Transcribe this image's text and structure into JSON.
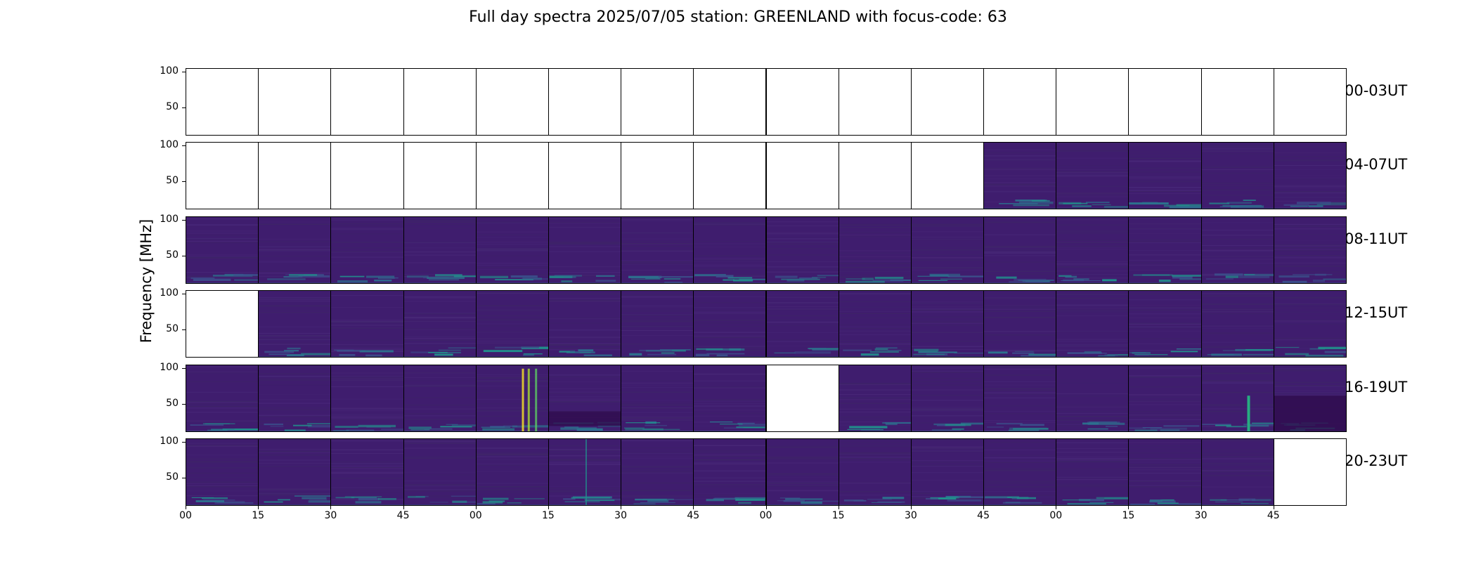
{
  "chart_data": {
    "type": "heatmap",
    "title": "Full day spectra 2025/07/05 station: GREENLAND with focus-code: 63",
    "ylabel": "Frequency [MHz]",
    "xlabel": "",
    "yticks": [
      "100",
      "50"
    ],
    "ylim": [
      10,
      105
    ],
    "xticks": [
      "00",
      "15",
      "30",
      "45",
      "00",
      "15",
      "30",
      "45",
      "00",
      "15",
      "30",
      "45",
      "00",
      "15",
      "30",
      "45"
    ],
    "colormap": "viridis",
    "rows": [
      {
        "label": "00-03UT",
        "has_data": [
          0,
          0,
          0,
          0,
          0,
          0,
          0,
          0,
          0,
          0,
          0,
          0,
          0,
          0,
          0,
          0
        ]
      },
      {
        "label": "04-07UT",
        "has_data": [
          0,
          0,
          0,
          0,
          0,
          0,
          0,
          0,
          0,
          0,
          0,
          1,
          1,
          1,
          1,
          1
        ]
      },
      {
        "label": "08-11UT",
        "has_data": [
          1,
          1,
          1,
          1,
          1,
          1,
          1,
          1,
          1,
          1,
          1,
          1,
          1,
          1,
          1,
          1
        ]
      },
      {
        "label": "12-15UT",
        "has_data": [
          0,
          1,
          1,
          1,
          1,
          1,
          1,
          1,
          1,
          1,
          1,
          1,
          1,
          1,
          1,
          1
        ]
      },
      {
        "label": "16-19UT",
        "has_data": [
          1,
          1,
          1,
          1,
          1,
          1,
          1,
          1,
          0,
          1,
          1,
          1,
          1,
          1,
          1,
          1
        ]
      },
      {
        "label": "20-23UT",
        "has_data": [
          1,
          1,
          1,
          1,
          1,
          1,
          1,
          1,
          1,
          1,
          1,
          1,
          1,
          1,
          1,
          0
        ]
      }
    ]
  }
}
